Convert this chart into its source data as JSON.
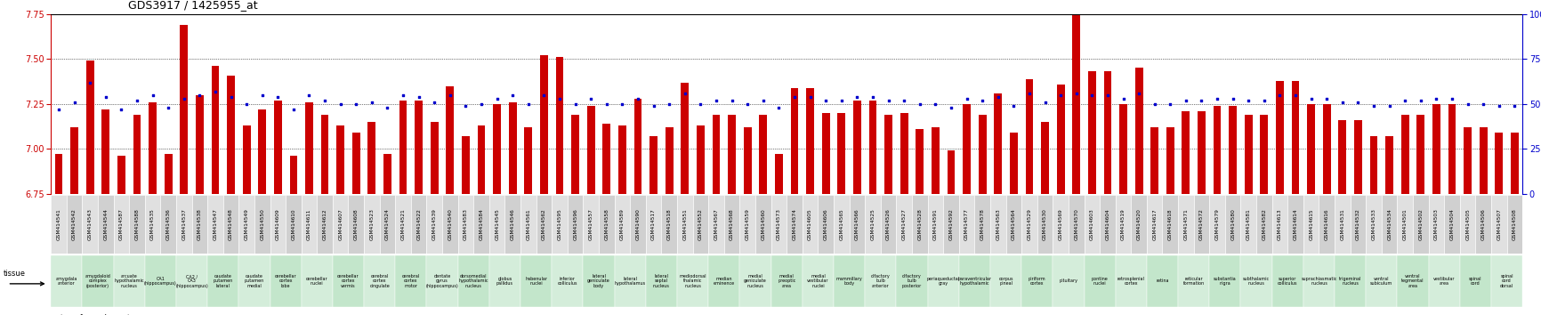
{
  "title": "GDS3917 / 1425955_at",
  "gsm_ids": [
    "GSM414541",
    "GSM414542",
    "GSM414543",
    "GSM414544",
    "GSM414587",
    "GSM414588",
    "GSM414535",
    "GSM414536",
    "GSM414537",
    "GSM414538",
    "GSM414547",
    "GSM414548",
    "GSM414549",
    "GSM414550",
    "GSM414609",
    "GSM414610",
    "GSM414611",
    "GSM414612",
    "GSM414607",
    "GSM414608",
    "GSM414523",
    "GSM414524",
    "GSM414521",
    "GSM414522",
    "GSM414539",
    "GSM414540",
    "GSM414583",
    "GSM414584",
    "GSM414545",
    "GSM414546",
    "GSM414561",
    "GSM414562",
    "GSM414595",
    "GSM414596",
    "GSM414557",
    "GSM414558",
    "GSM414589",
    "GSM414590",
    "GSM414517",
    "GSM414518",
    "GSM414551",
    "GSM414552",
    "GSM414567",
    "GSM414568",
    "GSM414559",
    "GSM414560",
    "GSM414573",
    "GSM414574",
    "GSM414605",
    "GSM414606",
    "GSM414565",
    "GSM414566",
    "GSM414525",
    "GSM414526",
    "GSM414527",
    "GSM414528",
    "GSM414591",
    "GSM414592",
    "GSM414577",
    "GSM414578",
    "GSM414563",
    "GSM414564",
    "GSM414529",
    "GSM414530",
    "GSM414569",
    "GSM414570",
    "GSM414603",
    "GSM414604",
    "GSM414519",
    "GSM414520",
    "GSM414617",
    "GSM414618",
    "GSM414571",
    "GSM414572",
    "GSM414579",
    "GSM414580",
    "GSM414581",
    "GSM414582",
    "GSM414613",
    "GSM414614",
    "GSM414615",
    "GSM414616",
    "GSM414531",
    "GSM414532",
    "GSM414533",
    "GSM414534",
    "GSM414501",
    "GSM414502",
    "GSM414503",
    "GSM414504",
    "GSM414505",
    "GSM414506",
    "GSM414507",
    "GSM414508"
  ],
  "transformed_count": [
    6.97,
    7.12,
    7.49,
    7.22,
    6.96,
    7.19,
    7.26,
    6.97,
    7.69,
    7.3,
    7.46,
    7.41,
    7.13,
    7.22,
    7.27,
    6.96,
    7.26,
    7.19,
    7.13,
    7.09,
    7.15,
    6.97,
    7.27,
    7.27,
    7.15,
    7.35,
    7.07,
    7.13,
    7.25,
    7.26,
    7.12,
    7.52,
    7.51,
    7.19,
    7.24,
    7.14,
    7.13,
    7.28,
    7.07,
    7.12,
    7.37,
    7.13,
    7.19,
    7.19,
    7.12,
    7.19,
    6.97,
    7.34,
    7.34,
    7.2,
    7.2,
    7.27,
    7.27,
    7.19,
    7.2,
    7.11,
    7.12,
    6.99,
    7.25,
    7.19,
    7.31,
    7.09,
    7.39,
    7.15,
    7.36,
    7.79,
    7.43,
    7.43,
    7.25,
    7.45,
    7.12,
    7.12,
    7.21,
    7.21,
    7.24,
    7.24,
    7.19,
    7.19,
    7.38,
    7.38,
    7.25,
    7.25,
    7.16,
    7.16,
    7.07,
    7.07,
    7.19,
    7.19,
    7.25,
    7.25,
    7.12,
    7.12,
    7.09,
    7.09
  ],
  "percentile_rank": [
    47,
    51,
    62,
    54,
    47,
    52,
    55,
    48,
    53,
    55,
    57,
    54,
    50,
    55,
    54,
    47,
    55,
    52,
    50,
    50,
    51,
    48,
    55,
    54,
    51,
    55,
    49,
    50,
    53,
    55,
    50,
    55,
    53,
    50,
    53,
    50,
    50,
    53,
    49,
    50,
    56,
    50,
    52,
    52,
    50,
    52,
    48,
    54,
    54,
    52,
    52,
    54,
    54,
    52,
    52,
    50,
    50,
    48,
    53,
    52,
    54,
    49,
    56,
    51,
    55,
    56,
    55,
    55,
    53,
    56,
    50,
    50,
    52,
    52,
    53,
    53,
    52,
    52,
    55,
    55,
    53,
    53,
    51,
    51,
    49,
    49,
    52,
    52,
    53,
    53,
    50,
    50,
    49,
    49
  ],
  "tissues": [
    "amygdala anterior",
    "amygdala anterior",
    "amygdaloid complex (posterior)",
    "amygdaloid complex (posterior)",
    "arcuate hypothalamic nucleus",
    "arcuate hypothalamic nucleus",
    "CA1 (hippocampus)",
    "CA1 (hippocampus)",
    "CA2 / CA3 (hippocampus)",
    "CA2 / CA3 (hippocampus)",
    "caudate putamen lateral",
    "caudate putamen lateral",
    "caudate putamen medial",
    "caudate putamen medial",
    "cerebellar cortex lobe",
    "cerebellar cortex lobe",
    "cerebellar nuclei",
    "cerebellar nuclei",
    "cerebellar cortex vermis",
    "cerebellar cortex vermis",
    "cerebral cortex cingulate",
    "cerebral cortex cingulate",
    "cerebral cortex motor",
    "cerebral cortex motor",
    "dentate gyrus (hippocampus)",
    "dentate gyrus (hippocampus)",
    "dorsomedial hypothalamic nucleus",
    "dorsomedial hypothalamic nucleus",
    "globus pallidus",
    "globus pallidus",
    "habenular nuclei",
    "habenular nuclei",
    "inferior colliculus",
    "inferior colliculus",
    "lateral geniculate body",
    "lateral geniculate body",
    "lateral hypothalamus",
    "lateral hypothalamus",
    "lateral septal nucleus",
    "lateral septal nucleus",
    "mediodorsal thalamic nucleus",
    "mediodorsal thalamic nucleus",
    "median eminence",
    "median eminence",
    "medial geniculate nucleus",
    "medial geniculate nucleus",
    "medial preoptic area",
    "medial preoptic area",
    "medial vestibular nuclei",
    "medial vestibular nuclei",
    "mammillary body",
    "mammillary body",
    "olfactory bulb anterior",
    "olfactory bulb anterior",
    "olfactory bulb posterior",
    "olfactory bulb posterior",
    "periaqueductal gray",
    "periaqueductal gray",
    "paraventricular hypothalamic",
    "paraventricular hypothalamic",
    "corpus pineal",
    "corpus pineal",
    "piriform cortex",
    "piriform cortex",
    "pituitary",
    "pituitary",
    "pontine nuclei",
    "pontine nuclei",
    "retrosplenial cortex",
    "retrosplenial cortex",
    "retina",
    "retina",
    "reticular formation",
    "reticular formation",
    "substantia nigra",
    "substantia nigra",
    "subthalamic nucleus",
    "subthalamic nucleus",
    "superior colliculus",
    "superior colliculus",
    "suprachiasmatic nucleus",
    "suprachiasmatic nucleus",
    "trigeminal nucleus",
    "trigeminal nucleus",
    "ventral subiculum",
    "ventral subiculum",
    "ventral tegmental area",
    "ventral tegmental area",
    "vestibular area",
    "vestibular area",
    "spinal cord",
    "spinal cord",
    "spinal cord dorsal",
    "spinal cord dorsal"
  ],
  "bar_color": "#cc0000",
  "dot_color": "#0000cc",
  "bar_bottom": 6.75,
  "ylim_left": [
    6.75,
    7.75
  ],
  "ylim_right": [
    0,
    100
  ],
  "yticks_left": [
    6.75,
    7.0,
    7.25,
    7.5,
    7.75
  ],
  "yticks_right": [
    0,
    25,
    50,
    75,
    100
  ],
  "grid_lines": [
    7.0,
    7.25,
    7.5
  ],
  "tissue_color_a": "#d4edda",
  "tissue_color_b": "#c3e6cb",
  "gsm_color_a": "#e0e0e0",
  "gsm_color_b": "#d0d0d0"
}
